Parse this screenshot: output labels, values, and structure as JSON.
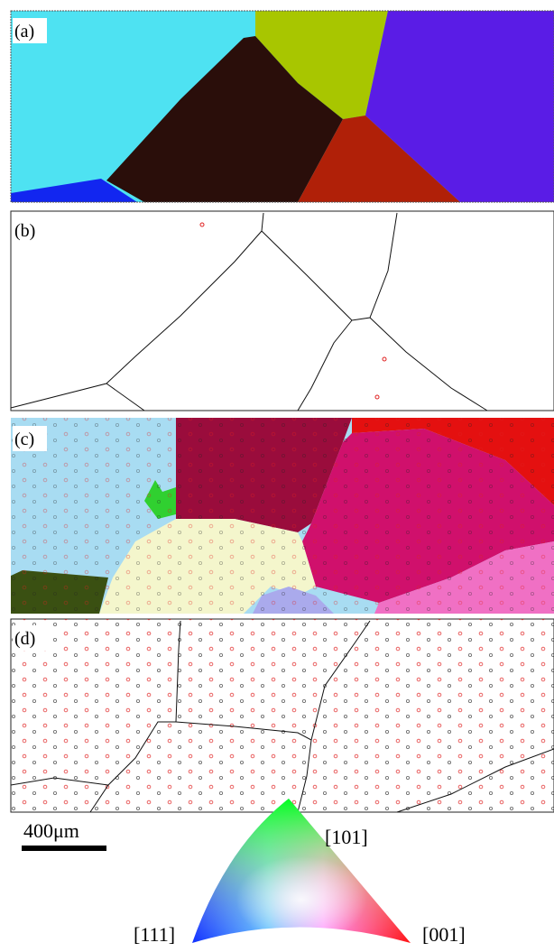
{
  "panels": [
    {
      "label": "(a)"
    },
    {
      "label": "(b)"
    },
    {
      "label": "(c)"
    },
    {
      "label": "(d)"
    }
  ],
  "scale_bar": {
    "label": "400μm"
  },
  "legend": {
    "top": "[101]",
    "left": "[111]",
    "right": "[001]"
  }
}
